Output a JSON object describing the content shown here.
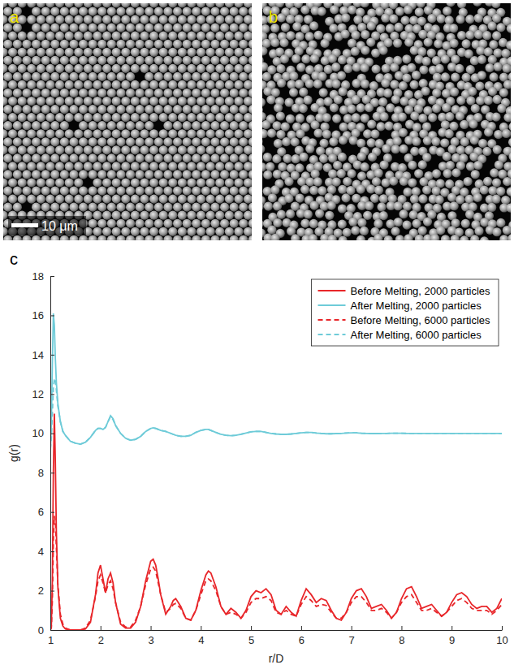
{
  "panel_labels": [
    "a",
    "b",
    "c"
  ],
  "scale_bar": {
    "label": "10 μm"
  },
  "chart_data": {
    "type": "line",
    "x_label": "r/D",
    "y_label": "g(r)",
    "xlim": [
      1,
      10
    ],
    "xticks": [
      1,
      2,
      3,
      4,
      5,
      6,
      7,
      8,
      9,
      10
    ],
    "ylim": [
      0,
      18
    ],
    "yticks": [
      0,
      2,
      4,
      6,
      8,
      10,
      12,
      14,
      16,
      18
    ],
    "grid": false,
    "legend": "top-right",
    "x": [
      1,
      1.02,
      1.04,
      1.06,
      1.08,
      1.1,
      1.12,
      1.15,
      1.2,
      1.25,
      1.3,
      1.4,
      1.5,
      1.6,
      1.7,
      1.8,
      1.9,
      1.95,
      2,
      2.05,
      2.1,
      2.15,
      2.2,
      2.25,
      2.3,
      2.4,
      2.5,
      2.6,
      2.7,
      2.8,
      2.9,
      3,
      3.05,
      3.1,
      3.15,
      3.2,
      3.3,
      3.4,
      3.45,
      3.5,
      3.6,
      3.7,
      3.8,
      3.9,
      4,
      4.1,
      4.15,
      4.2,
      4.3,
      4.4,
      4.5,
      4.6,
      4.7,
      4.8,
      4.9,
      5,
      5.1,
      5.2,
      5.3,
      5.4,
      5.5,
      5.6,
      5.7,
      5.8,
      5.9,
      6,
      6.1,
      6.2,
      6.3,
      6.4,
      6.5,
      6.6,
      6.7,
      6.8,
      6.9,
      7,
      7.1,
      7.2,
      7.3,
      7.4,
      7.5,
      7.6,
      7.7,
      7.8,
      7.9,
      8,
      8.1,
      8.2,
      8.3,
      8.4,
      8.5,
      8.6,
      8.7,
      8.8,
      8.9,
      9,
      9.1,
      9.2,
      9.3,
      9.4,
      9.5,
      9.6,
      9.7,
      9.8,
      9.9,
      10
    ],
    "series": [
      {
        "name": "Before Melting, 2000 particles",
        "color": "#e8262a",
        "line_style": "solid",
        "values": [
          0,
          0.2,
          2.5,
          8,
          11,
          8.5,
          5,
          2.2,
          0.6,
          0.2,
          0.05,
          0,
          0,
          0,
          0.05,
          0.4,
          1.8,
          2.9,
          3.3,
          2.6,
          1.9,
          2.6,
          2.9,
          2.4,
          1.4,
          0.3,
          0.1,
          0.1,
          0.4,
          1.2,
          2.5,
          3.5,
          3.6,
          3.3,
          2.6,
          1.8,
          0.8,
          1.2,
          1.5,
          1.6,
          1.2,
          0.6,
          0.5,
          1,
          2,
          2.8,
          3,
          2.9,
          2.2,
          1.2,
          0.8,
          1.1,
          0.9,
          0.6,
          1,
          1.7,
          2,
          1.9,
          2.1,
          1.8,
          1,
          0.8,
          1.2,
          0.9,
          0.7,
          1.5,
          2.1,
          1.8,
          1.4,
          1.6,
          1.5,
          1,
          0.6,
          0.5,
          0.9,
          1.6,
          2,
          2.1,
          1.7,
          1.1,
          1.2,
          1.3,
          1,
          0.6,
          0.9,
          1.6,
          2.1,
          2.2,
          1.7,
          1.1,
          1.2,
          1.3,
          1,
          0.7,
          0.9,
          1.4,
          1.8,
          1.9,
          1.7,
          1.3,
          1.1,
          1.2,
          1.2,
          0.9,
          1.1,
          1.6
        ]
      },
      {
        "name": "After Melting, 2000 particles",
        "color": "#6ecbd8",
        "line_style": "solid",
        "values": [
          9,
          10.5,
          13.5,
          16.1,
          15.5,
          13.8,
          12.6,
          11.5,
          10.6,
          10.1,
          9.9,
          9.6,
          9.5,
          9.45,
          9.55,
          9.8,
          10.15,
          10.25,
          10.25,
          10.2,
          10.3,
          10.6,
          10.9,
          10.75,
          10.4,
          10,
          9.75,
          9.65,
          9.7,
          9.85,
          10.1,
          10.25,
          10.28,
          10.25,
          10.2,
          10.15,
          10.1,
          10,
          9.95,
          9.9,
          9.85,
          9.85,
          9.9,
          10.05,
          10.15,
          10.2,
          10.2,
          10.15,
          10.05,
          9.95,
          9.9,
          9.88,
          9.9,
          9.95,
          10.02,
          10.08,
          10.1,
          10.1,
          10.05,
          10,
          9.97,
          9.95,
          9.95,
          9.97,
          10,
          10.03,
          10.05,
          10.05,
          10.02,
          10,
          9.98,
          9.98,
          9.99,
          10,
          10.02,
          10.03,
          10.03,
          10.01,
          10,
          9.99,
          9.99,
          10,
          10,
          10.01,
          10.01,
          10.01,
          10,
          10,
          10,
          10,
          10,
          10,
          10,
          10,
          10,
          10,
          10,
          10,
          10,
          10,
          10,
          10,
          10,
          10,
          10,
          10
        ]
      },
      {
        "name": "Before Melting, 6000 particles",
        "color": "#e8262a",
        "line_style": "dashed",
        "values": [
          0,
          0.1,
          1.5,
          4.5,
          5.8,
          5.5,
          4.2,
          2.3,
          0.8,
          0.3,
          0.1,
          0,
          0,
          0,
          0.1,
          0.5,
          1.7,
          2.5,
          2.8,
          2.4,
          1.9,
          2.3,
          2.5,
          2.1,
          1.4,
          0.4,
          0.15,
          0.15,
          0.5,
          1.2,
          2.3,
          3.1,
          3.2,
          3,
          2.4,
          1.8,
          0.9,
          1.1,
          1.3,
          1.35,
          1.1,
          0.6,
          0.5,
          1,
          1.8,
          2.5,
          2.6,
          2.5,
          2,
          1.2,
          0.8,
          0.9,
          0.8,
          0.6,
          0.9,
          1.4,
          1.6,
          1.6,
          1.7,
          1.5,
          0.9,
          0.8,
          1,
          0.8,
          0.7,
          1.3,
          1.7,
          1.5,
          1.2,
          1.3,
          1.25,
          0.9,
          0.6,
          0.6,
          0.9,
          1.4,
          1.7,
          1.7,
          1.4,
          1,
          1,
          1.1,
          0.9,
          0.6,
          0.9,
          1.4,
          1.7,
          1.8,
          1.4,
          1,
          1,
          1.1,
          0.9,
          0.7,
          0.9,
          1.2,
          1.5,
          1.6,
          1.4,
          1.1,
          1,
          1,
          1,
          0.8,
          1,
          1.3
        ]
      },
      {
        "name": "After Melting, 6000 particles",
        "color": "#6ecbd8",
        "line_style": "dashed",
        "values": [
          9.2,
          9.8,
          11,
          12.3,
          12.8,
          12.7,
          12.2,
          11.4,
          10.6,
          10.1,
          9.9,
          9.6,
          9.5,
          9.45,
          9.55,
          9.8,
          10.15,
          10.25,
          10.25,
          10.2,
          10.3,
          10.6,
          10.85,
          10.7,
          10.4,
          10,
          9.75,
          9.65,
          9.7,
          9.85,
          10.1,
          10.25,
          10.28,
          10.25,
          10.2,
          10.15,
          10.1,
          10,
          9.95,
          9.9,
          9.85,
          9.85,
          9.9,
          10.05,
          10.15,
          10.2,
          10.2,
          10.15,
          10.05,
          9.95,
          9.9,
          9.88,
          9.9,
          9.95,
          10.02,
          10.08,
          10.1,
          10.1,
          10.05,
          10,
          9.97,
          9.95,
          9.95,
          9.97,
          10,
          10.03,
          10.05,
          10.05,
          10.02,
          10,
          9.98,
          9.98,
          9.99,
          10,
          10.02,
          10.03,
          10.03,
          10.01,
          10,
          9.99,
          9.99,
          10,
          10,
          10.01,
          10.01,
          10.01,
          10,
          10,
          10,
          10,
          10,
          10,
          10,
          10,
          10,
          10,
          10,
          10,
          10,
          10,
          10,
          10,
          10,
          10,
          10,
          10
        ]
      }
    ]
  }
}
